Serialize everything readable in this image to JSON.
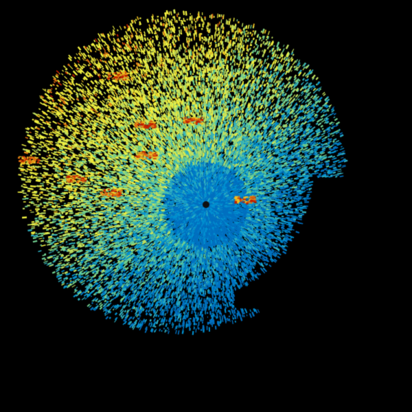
{
  "image": {
    "kind": "radar-reflectivity-sweep",
    "background": "#000000",
    "palette": [
      "#0070c0",
      "#0090d0",
      "#30b0c0",
      "#70d090",
      "#c0e060",
      "#f0f040",
      "#f0c020",
      "#e07010",
      "#c02000",
      "#101010"
    ],
    "site_marker_color": "#101010"
  }
}
